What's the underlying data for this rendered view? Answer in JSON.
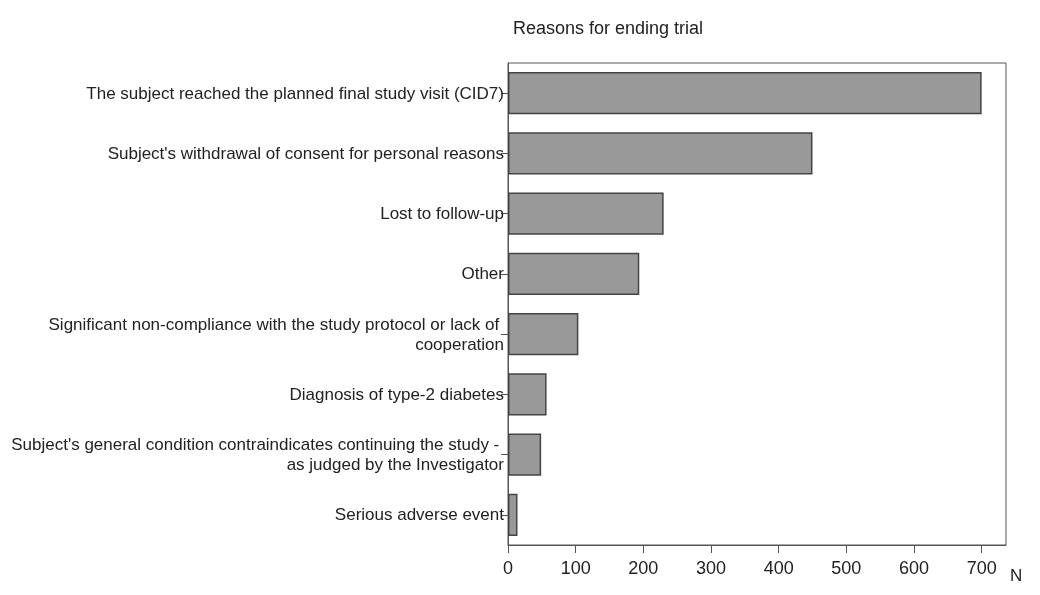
{
  "chart_data": {
    "type": "bar",
    "orientation": "horizontal",
    "title": "Reasons for ending trial",
    "xlabel": "N",
    "categories": [
      "The subject reached the planned final study visit (CID7)",
      "Subject's withdrawal of consent for personal reasons",
      "Lost to follow-up",
      "Other",
      "Significant non-compliance with the study protocol or lack of cooperation",
      "Diagnosis of type-2 diabetes",
      "Subject's general condition contraindicates continuing the study - as judged by the Investigator",
      "Serious adverse event"
    ],
    "values": [
      700,
      450,
      230,
      194,
      104,
      57,
      49,
      14
    ],
    "color": "#999999",
    "xlim": [
      0,
      736
    ],
    "xticks": [
      0,
      100,
      200,
      300,
      400,
      500,
      600,
      700
    ],
    "grid": false
  }
}
